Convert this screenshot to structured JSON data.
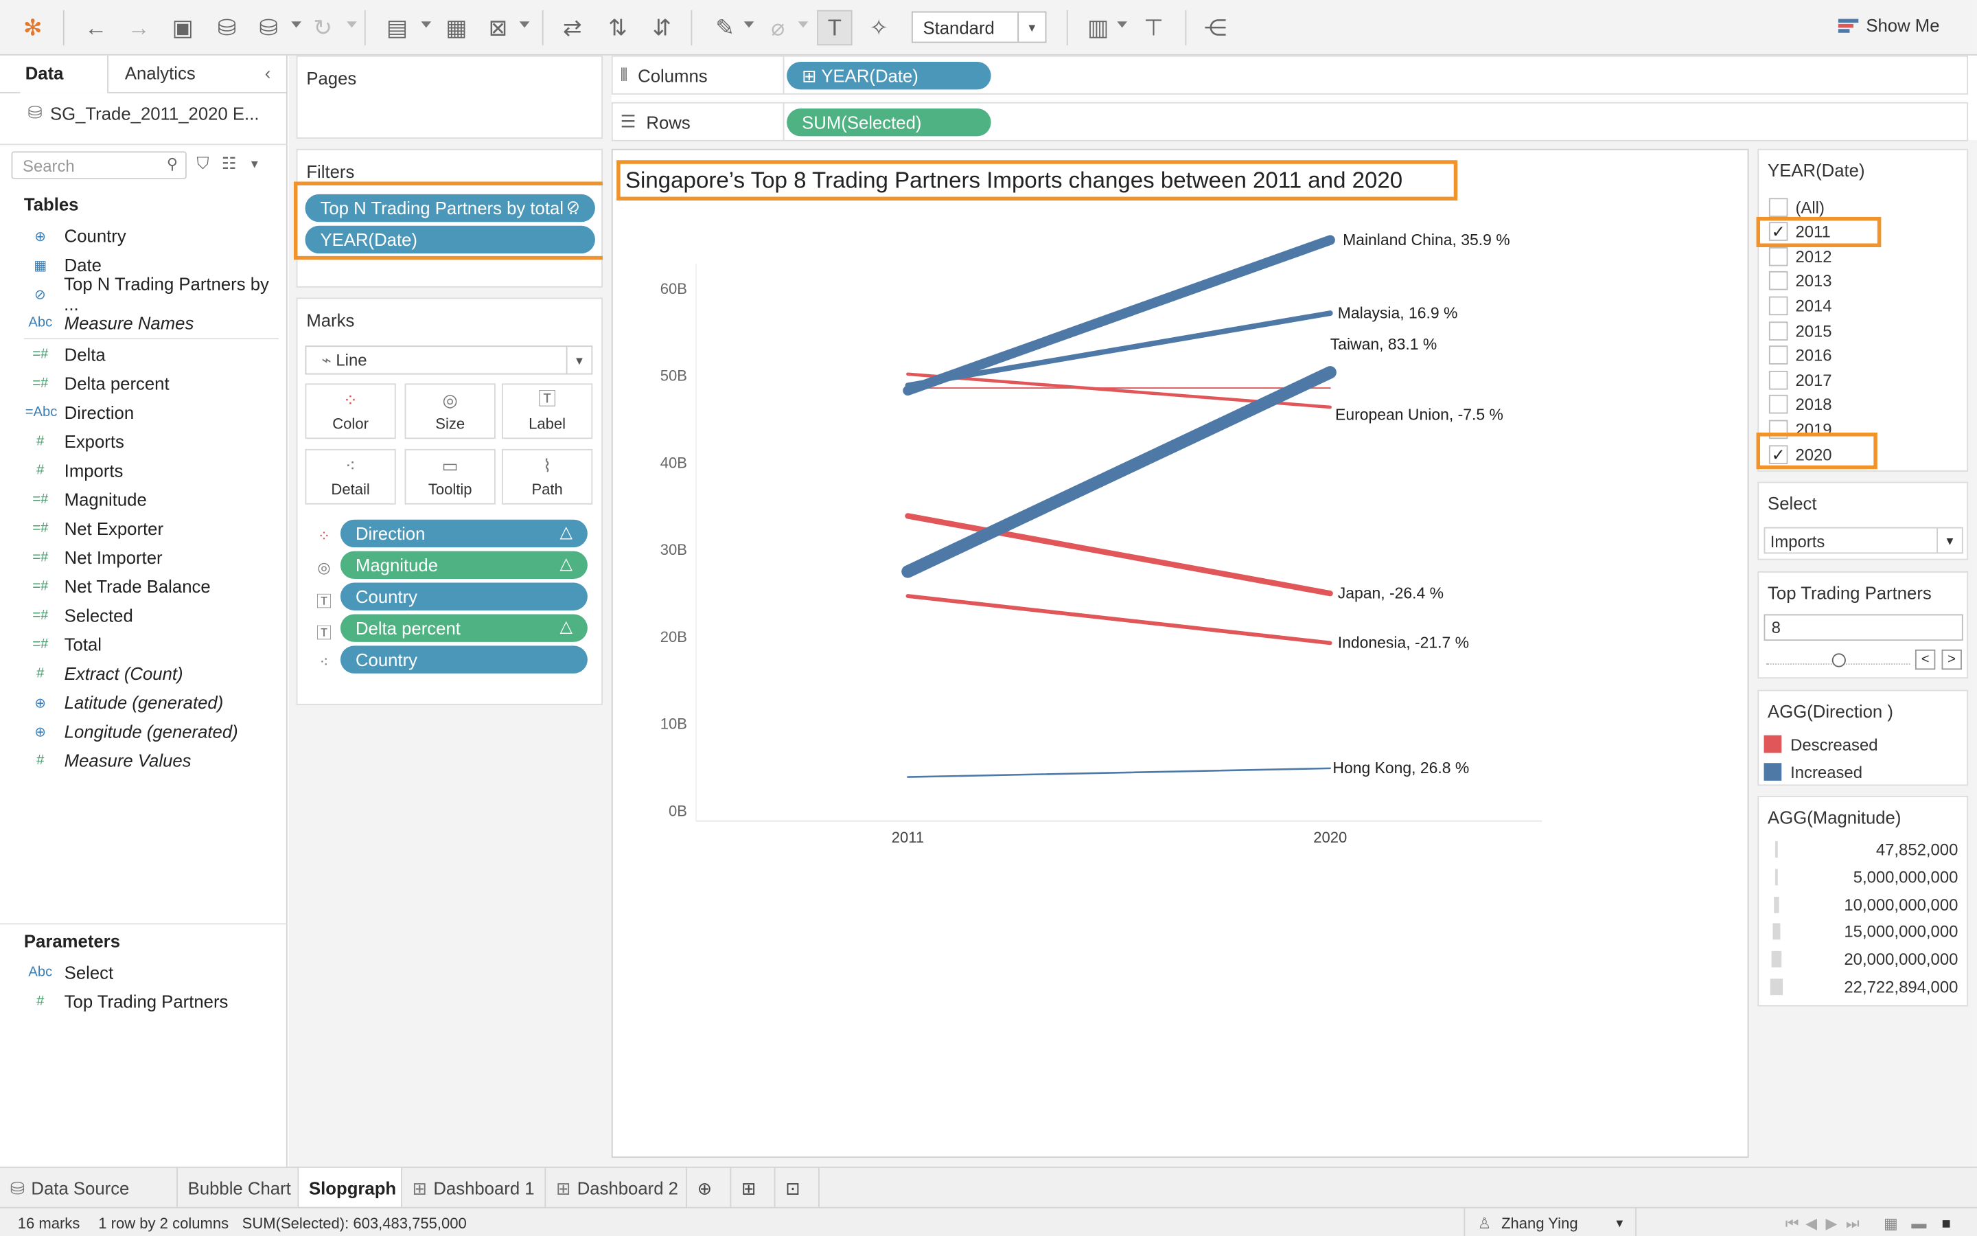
{
  "toolbar": {
    "mode": "Standard",
    "show_me": "Show Me",
    "icons": [
      "tableau-logo-icon",
      "back-icon",
      "forward-icon",
      "save-icon",
      "new-datasource-icon",
      "datasource-icon",
      "refresh-icon",
      "new-worksheet-icon",
      "duplicate-icon",
      "clear-icon",
      "swap-icon",
      "sort-asc-icon",
      "sort-desc-icon",
      "highlight-icon",
      "attach-icon",
      "text-icon",
      "pin-icon",
      "fit-icon",
      "presentation-icon",
      "share-icon"
    ]
  },
  "data_pane": {
    "tab_data": "Data",
    "tab_analytics": "Analytics",
    "datasource": "SG_Trade_2011_2020 E...",
    "search_placeholder": "Search",
    "tables_header": "Tables",
    "fields": [
      {
        "label": "Country",
        "icon": "globe"
      },
      {
        "label": "Date",
        "icon": "calendar"
      },
      {
        "label": "Top N Trading Partners by ...",
        "icon": "set"
      },
      {
        "label": "Measure Names",
        "icon": "Abc",
        "italic": true
      },
      {
        "label": "Delta",
        "icon": "=#"
      },
      {
        "label": "Delta percent",
        "icon": "=#"
      },
      {
        "label": "Direction",
        "icon": "=Abc"
      },
      {
        "label": "Exports",
        "icon": "#"
      },
      {
        "label": "Imports",
        "icon": "#"
      },
      {
        "label": "Magnitude",
        "icon": "=#"
      },
      {
        "label": "Net Exporter",
        "icon": "=#"
      },
      {
        "label": "Net Importer",
        "icon": "=#"
      },
      {
        "label": "Net Trade Balance",
        "icon": "=#"
      },
      {
        "label": "Selected",
        "icon": "=#"
      },
      {
        "label": "Total",
        "icon": "=#"
      },
      {
        "label": "Extract (Count)",
        "icon": "#",
        "italic": true
      },
      {
        "label": "Latitude (generated)",
        "icon": "globe",
        "italic": true
      },
      {
        "label": "Longitude (generated)",
        "icon": "globe",
        "italic": true
      },
      {
        "label": "Measure Values",
        "icon": "#",
        "italic": true
      }
    ],
    "parameters_header": "Parameters",
    "parameters": [
      {
        "label": "Select",
        "icon": "Abc"
      },
      {
        "label": "Top Trading Partners",
        "icon": "#"
      }
    ]
  },
  "pages": {
    "title": "Pages"
  },
  "filters": {
    "title": "Filters",
    "pills": [
      "Top N Trading Partners by total ..",
      "YEAR(Date)"
    ]
  },
  "marks": {
    "title": "Marks",
    "type": "Line",
    "buttons": [
      "Color",
      "Size",
      "Label",
      "Detail",
      "Tooltip",
      "Path"
    ],
    "fields": [
      {
        "label": "Direction",
        "color": "blue",
        "icon": "color"
      },
      {
        "label": "Magnitude",
        "color": "green",
        "icon": "size"
      },
      {
        "label": "Country",
        "color": "blue",
        "icon": "label"
      },
      {
        "label": "Delta percent",
        "color": "green",
        "icon": "label"
      },
      {
        "label": "Country",
        "color": "blue",
        "icon": "detail"
      }
    ]
  },
  "shelves": {
    "columns_label": "Columns",
    "columns_pill": "YEAR(Date)",
    "rows_label": "Rows",
    "rows_pill": "SUM(Selected)"
  },
  "view": {
    "title": "Singapore’s Top 8 Trading Partners Imports changes between 2011 and 2020"
  },
  "chart_data": {
    "type": "line",
    "x": [
      "2011",
      "2020"
    ],
    "y_ticks": [
      "0B",
      "10B",
      "20B",
      "30B",
      "40B",
      "50B",
      "60B"
    ],
    "ylim": [
      0,
      60
    ],
    "y_unit": "billions",
    "colors": {
      "Increased": "#4e79a7",
      "Descreased": "#e15759"
    },
    "series": [
      {
        "name": "Mainland China",
        "values": [
          48.3,
          65.6
        ],
        "label": "Mainland China,   35.9 %",
        "direction": "Increased",
        "magnitude": 17.3
      },
      {
        "name": "Malaysia",
        "values": [
          48.9,
          57.2
        ],
        "label": "Malaysia,   16.9 %",
        "direction": "Increased",
        "magnitude": 8.3
      },
      {
        "name": "Taiwan",
        "values": [
          27.5,
          50.4
        ],
        "label": "Taiwan,   83.1 %",
        "direction": "Increased",
        "magnitude": 22.8
      },
      {
        "name": "European Union",
        "values": [
          50.2,
          46.4
        ],
        "label": "European Union,   -7.5 %",
        "direction": "Descreased",
        "magnitude": 3.8
      },
      {
        "name": "Japan",
        "values": [
          33.9,
          25.0
        ],
        "label": "Japan,   -26.4 %",
        "direction": "Descreased",
        "magnitude": 8.9
      },
      {
        "name": "Indonesia",
        "values": [
          24.7,
          19.3
        ],
        "label": "Indonesia,   -21.7 %",
        "direction": "Descreased",
        "magnitude": 5.4
      },
      {
        "name": "Hong Kong",
        "values": [
          3.9,
          4.9
        ],
        "label": "Hong Kong,   26.8 %",
        "direction": "Increased",
        "magnitude": 1.0
      },
      {
        "name": "",
        "values": [
          48.6,
          48.6
        ],
        "label": "",
        "direction": "Descreased",
        "magnitude": 0.05
      }
    ]
  },
  "year_filter": {
    "title": "YEAR(Date)",
    "items": [
      {
        "label": "(All)",
        "checked": false
      },
      {
        "label": "2011",
        "checked": true
      },
      {
        "label": "2012",
        "checked": false
      },
      {
        "label": "2013",
        "checked": false
      },
      {
        "label": "2014",
        "checked": false
      },
      {
        "label": "2015",
        "checked": false
      },
      {
        "label": "2016",
        "checked": false
      },
      {
        "label": "2017",
        "checked": false
      },
      {
        "label": "2018",
        "checked": false
      },
      {
        "label": "2019",
        "checked": false
      },
      {
        "label": "2020",
        "checked": true
      }
    ]
  },
  "select_param": {
    "title": "Select",
    "value": "Imports"
  },
  "top_partners_param": {
    "title": "Top Trading Partners",
    "value": "8",
    "slider_fraction": 0.5
  },
  "direction_legend": {
    "title": "AGG(Direction )",
    "items": [
      {
        "label": "Descreased",
        "color": "#e15759"
      },
      {
        "label": "Increased",
        "color": "#4e79a7"
      }
    ]
  },
  "magnitude_legend": {
    "title": "AGG(Magnitude)",
    "items": [
      {
        "label": "47,852,000",
        "level": 0.05
      },
      {
        "label": "5,000,000,000",
        "level": 0.2
      },
      {
        "label": "10,000,000,000",
        "level": 0.4
      },
      {
        "label": "15,000,000,000",
        "level": 0.6
      },
      {
        "label": "20,000,000,000",
        "level": 0.8
      },
      {
        "label": "22,722,894,000",
        "level": 1.0
      }
    ]
  },
  "sheet_tabs": {
    "items": [
      "Data Source",
      "Bubble Chart",
      "Slopgraph",
      "Dashboard 1",
      "Dashboard 2"
    ],
    "active": "Slopgraph"
  },
  "status": {
    "marks": "16 marks",
    "dims": "1 row by 2 columns",
    "sum": "SUM(Selected): 603,483,755,000",
    "user": "Zhang Ying"
  }
}
